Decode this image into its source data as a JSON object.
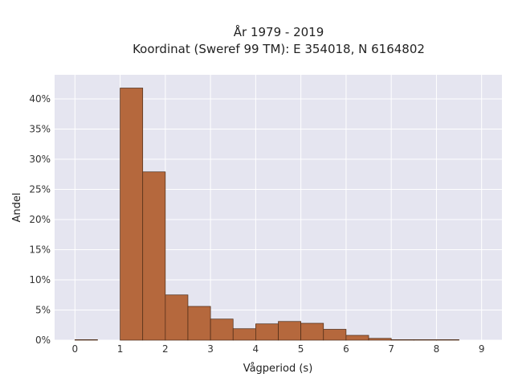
{
  "chart_data": {
    "type": "bar",
    "title_lines": [
      "År 1979 - 2019",
      "Koordinat (Sweref 99 TM): E 354018, N 6164802"
    ],
    "xlabel": "Vågperiod (s)",
    "ylabel": "Andel",
    "xlim": [
      -0.45,
      9.45
    ],
    "ylim": [
      0,
      0.44
    ],
    "x_ticks": [
      0,
      1,
      2,
      3,
      4,
      5,
      6,
      7,
      8,
      9
    ],
    "x_tick_labels": [
      "0",
      "1",
      "2",
      "3",
      "4",
      "5",
      "6",
      "7",
      "8",
      "9"
    ],
    "y_ticks": [
      0,
      0.05,
      0.1,
      0.15,
      0.2,
      0.25,
      0.3,
      0.35,
      0.4
    ],
    "y_tick_labels": [
      "0%",
      "5%",
      "10%",
      "15%",
      "20%",
      "25%",
      "30%",
      "35%",
      "40%"
    ],
    "bin_width": 0.5,
    "bins_start": [
      0,
      0.5,
      1,
      1.5,
      2,
      2.5,
      3,
      3.5,
      4,
      4.5,
      5,
      5.5,
      6,
      6.5,
      7,
      7.5,
      8,
      8.5,
      9
    ],
    "values": [
      0.0005,
      0,
      0.418,
      0.279,
      0.075,
      0.056,
      0.035,
      0.019,
      0.027,
      0.031,
      0.028,
      0.018,
      0.008,
      0.003,
      0.0008,
      0.0005,
      0.0003,
      0,
      0
    ],
    "grid": true,
    "colors": {
      "bar_fill": "#b5683d",
      "bar_stroke": "#4a2a16",
      "plot_background": "#e5e5f0",
      "grid": "#ffffff"
    }
  }
}
